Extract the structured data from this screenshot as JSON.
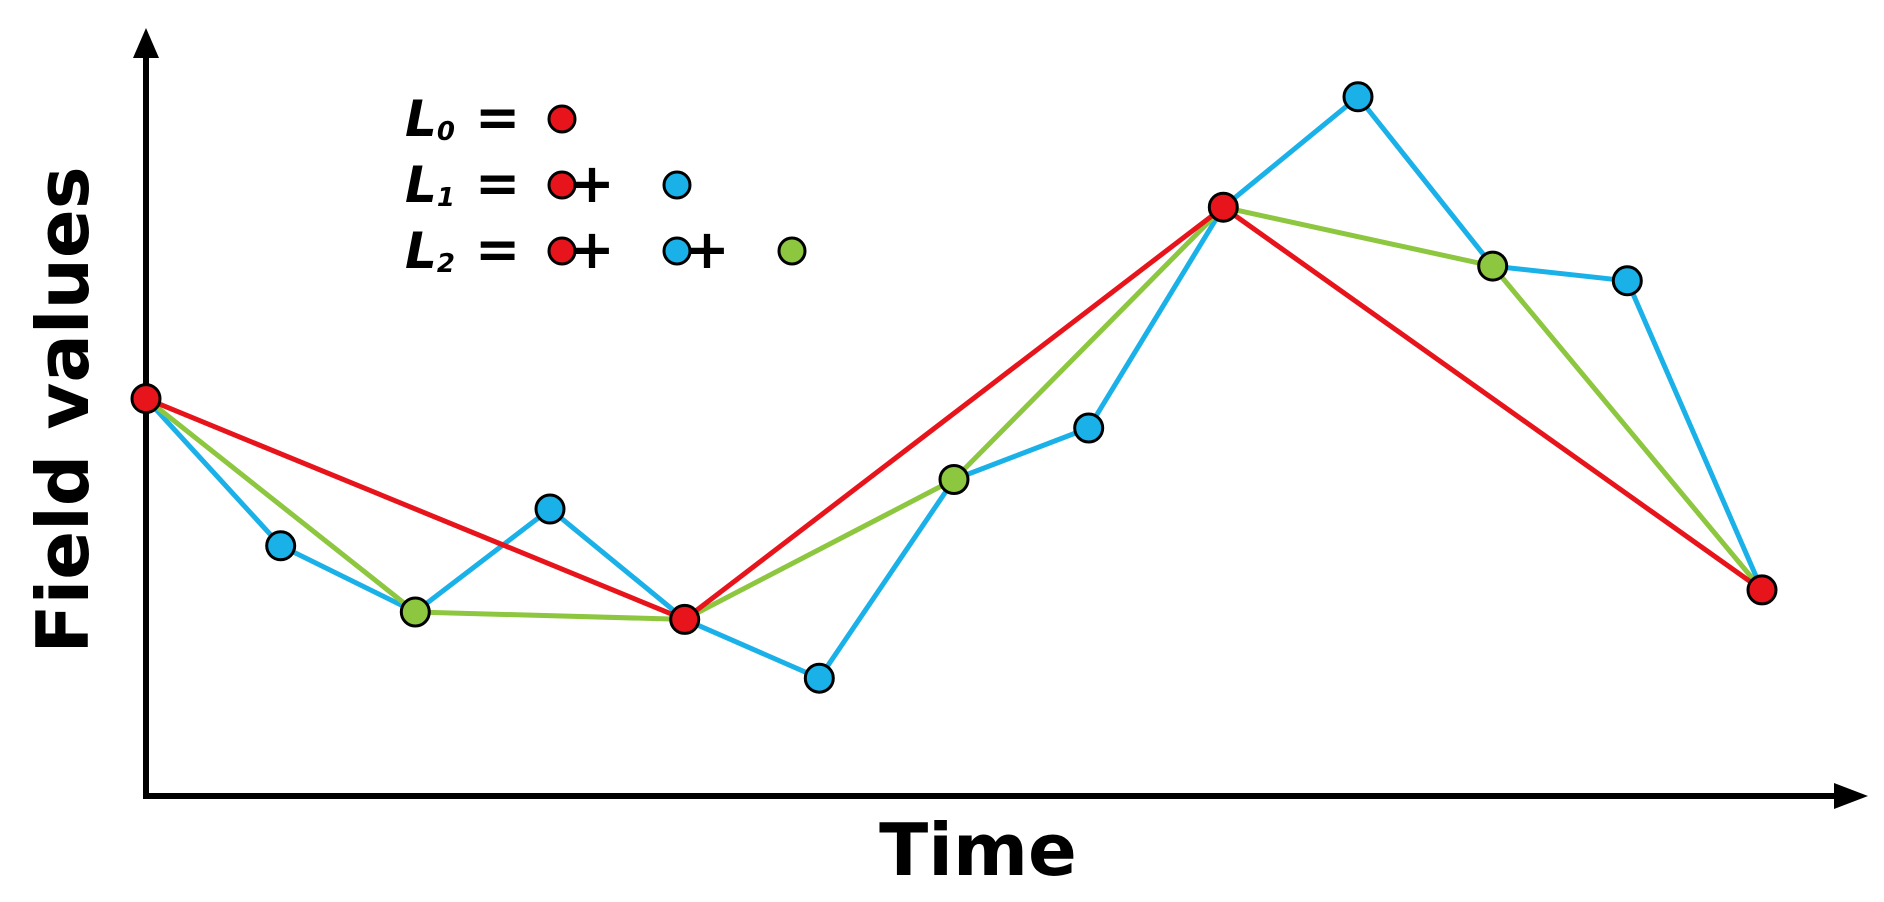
{
  "colors": {
    "level0": "#e8141b",
    "level1": "#1ab0e8",
    "level2": "#8dc63f",
    "axis": "#000000"
  },
  "axes": {
    "x_label": "Time",
    "y_label": "Field values"
  },
  "legend": [
    {
      "letter": "L",
      "subscript": "0",
      "equals": "=",
      "terms": [
        "level0"
      ],
      "plus": "+"
    },
    {
      "letter": "L",
      "subscript": "1",
      "equals": "=",
      "terms": [
        "level0",
        "level1"
      ],
      "plus": "+"
    },
    {
      "letter": "L",
      "subscript": "2",
      "equals": "=",
      "terms": [
        "level0",
        "level1",
        "level2"
      ],
      "plus": "+"
    }
  ],
  "chart_data": {
    "type": "line",
    "xlim": [
      0,
      12.5
    ],
    "ylim": [
      0,
      100
    ],
    "series": [
      {
        "key": "L1",
        "color_key": "level1",
        "points": [
          {
            "x": 0,
            "y": 54,
            "level": "level0"
          },
          {
            "x": 1,
            "y": 34,
            "level": "level1"
          },
          {
            "x": 2,
            "y": 25,
            "level": "level2"
          },
          {
            "x": 3,
            "y": 39,
            "level": "level1"
          },
          {
            "x": 4,
            "y": 24,
            "level": "level0"
          },
          {
            "x": 5,
            "y": 16,
            "level": "level1"
          },
          {
            "x": 6,
            "y": 43,
            "level": "level2"
          },
          {
            "x": 7,
            "y": 50,
            "level": "level1"
          },
          {
            "x": 8,
            "y": 80,
            "level": "level0"
          },
          {
            "x": 9,
            "y": 95,
            "level": "level1"
          },
          {
            "x": 10,
            "y": 72,
            "level": "level2"
          },
          {
            "x": 11,
            "y": 70,
            "level": "level1"
          },
          {
            "x": 12,
            "y": 28,
            "level": "level0"
          }
        ]
      },
      {
        "key": "L2",
        "color_key": "level2",
        "points": [
          {
            "x": 0,
            "y": 54
          },
          {
            "x": 2,
            "y": 25
          },
          {
            "x": 4,
            "y": 24
          },
          {
            "x": 6,
            "y": 43
          },
          {
            "x": 8,
            "y": 80
          },
          {
            "x": 10,
            "y": 72
          },
          {
            "x": 12,
            "y": 28
          }
        ]
      },
      {
        "key": "L0",
        "color_key": "level0",
        "points": [
          {
            "x": 0,
            "y": 54
          },
          {
            "x": 4,
            "y": 24
          },
          {
            "x": 8,
            "y": 80
          },
          {
            "x": 12,
            "y": 28
          }
        ]
      }
    ]
  }
}
